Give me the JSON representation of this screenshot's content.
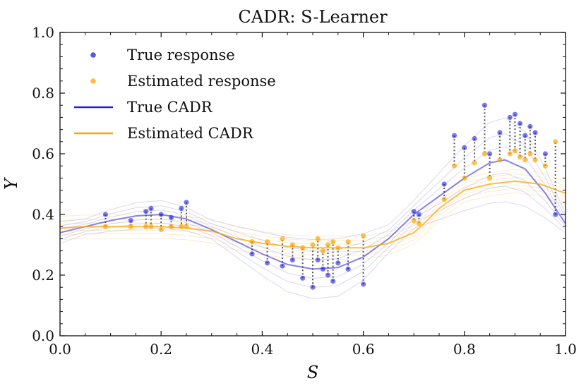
{
  "chart_data": {
    "type": "line",
    "title": "CADR: S-Learner",
    "xlabel": "S",
    "ylabel": "Y",
    "xlim": [
      0.0,
      1.0
    ],
    "ylim": [
      0.0,
      1.0
    ],
    "xticks": [
      "0.0",
      "0.2",
      "0.4",
      "0.6",
      "0.8",
      "1.0"
    ],
    "yticks": [
      "0.0",
      "0.2",
      "0.4",
      "0.6",
      "0.8",
      "1.0"
    ],
    "grid": false,
    "legend_position": "top-left",
    "colors": {
      "true": "#1f1fe0",
      "estimated": "#ffa500",
      "connector": "#555555"
    },
    "legend": [
      {
        "label": "True response",
        "kind": "marker",
        "color": "#1f1fe0"
      },
      {
        "label": "Estimated response",
        "kind": "marker",
        "color": "#ffa500"
      },
      {
        "label": "True CADR",
        "kind": "line",
        "color": "#1f1fe0"
      },
      {
        "label": "Estimated CADR",
        "kind": "line",
        "color": "#ffa500"
      }
    ],
    "series": [
      {
        "name": "True CADR",
        "x": [
          0.0,
          0.05,
          0.1,
          0.15,
          0.2,
          0.25,
          0.3,
          0.35,
          0.4,
          0.45,
          0.5,
          0.55,
          0.6,
          0.65,
          0.7,
          0.75,
          0.8,
          0.85,
          0.88,
          0.92,
          0.96,
          1.0
        ],
        "y": [
          0.34,
          0.36,
          0.38,
          0.395,
          0.4,
          0.385,
          0.35,
          0.31,
          0.27,
          0.235,
          0.22,
          0.225,
          0.26,
          0.32,
          0.4,
          0.46,
          0.52,
          0.57,
          0.58,
          0.55,
          0.47,
          0.37
        ]
      },
      {
        "name": "Estimated CADR",
        "x": [
          0.0,
          0.05,
          0.1,
          0.15,
          0.2,
          0.25,
          0.3,
          0.35,
          0.4,
          0.45,
          0.5,
          0.55,
          0.6,
          0.65,
          0.7,
          0.72,
          0.75,
          0.8,
          0.85,
          0.9,
          0.95,
          1.0
        ],
        "y": [
          0.355,
          0.36,
          0.36,
          0.36,
          0.36,
          0.355,
          0.345,
          0.32,
          0.305,
          0.295,
          0.29,
          0.29,
          0.29,
          0.305,
          0.34,
          0.37,
          0.42,
          0.48,
          0.5,
          0.51,
          0.5,
          0.47
        ]
      },
      {
        "name": "True response",
        "x": [
          0.09,
          0.14,
          0.17,
          0.18,
          0.2,
          0.22,
          0.24,
          0.25,
          0.38,
          0.41,
          0.44,
          0.46,
          0.48,
          0.5,
          0.51,
          0.52,
          0.53,
          0.54,
          0.55,
          0.57,
          0.6,
          0.7,
          0.71,
          0.76,
          0.78,
          0.8,
          0.82,
          0.84,
          0.85,
          0.87,
          0.89,
          0.9,
          0.91,
          0.92,
          0.93,
          0.94,
          0.96,
          0.98
        ],
        "y": [
          0.4,
          0.38,
          0.41,
          0.42,
          0.4,
          0.39,
          0.42,
          0.44,
          0.27,
          0.24,
          0.23,
          0.25,
          0.19,
          0.16,
          0.25,
          0.22,
          0.2,
          0.18,
          0.24,
          0.22,
          0.17,
          0.41,
          0.4,
          0.5,
          0.66,
          0.62,
          0.65,
          0.76,
          0.6,
          0.67,
          0.72,
          0.73,
          0.7,
          0.66,
          0.69,
          0.67,
          0.6,
          0.4
        ]
      },
      {
        "name": "Estimated response",
        "x": [
          0.09,
          0.14,
          0.17,
          0.18,
          0.2,
          0.22,
          0.24,
          0.25,
          0.38,
          0.41,
          0.44,
          0.46,
          0.48,
          0.5,
          0.51,
          0.52,
          0.53,
          0.54,
          0.55,
          0.57,
          0.6,
          0.7,
          0.71,
          0.76,
          0.78,
          0.8,
          0.82,
          0.84,
          0.85,
          0.87,
          0.89,
          0.9,
          0.91,
          0.92,
          0.93,
          0.94,
          0.96,
          0.98
        ],
        "y": [
          0.36,
          0.36,
          0.36,
          0.36,
          0.35,
          0.36,
          0.36,
          0.36,
          0.31,
          0.31,
          0.32,
          0.3,
          0.29,
          0.3,
          0.32,
          0.28,
          0.3,
          0.31,
          0.29,
          0.31,
          0.33,
          0.38,
          0.37,
          0.45,
          0.56,
          0.52,
          0.57,
          0.6,
          0.52,
          0.58,
          0.6,
          0.61,
          0.59,
          0.58,
          0.6,
          0.58,
          0.56,
          0.64
        ]
      }
    ]
  }
}
